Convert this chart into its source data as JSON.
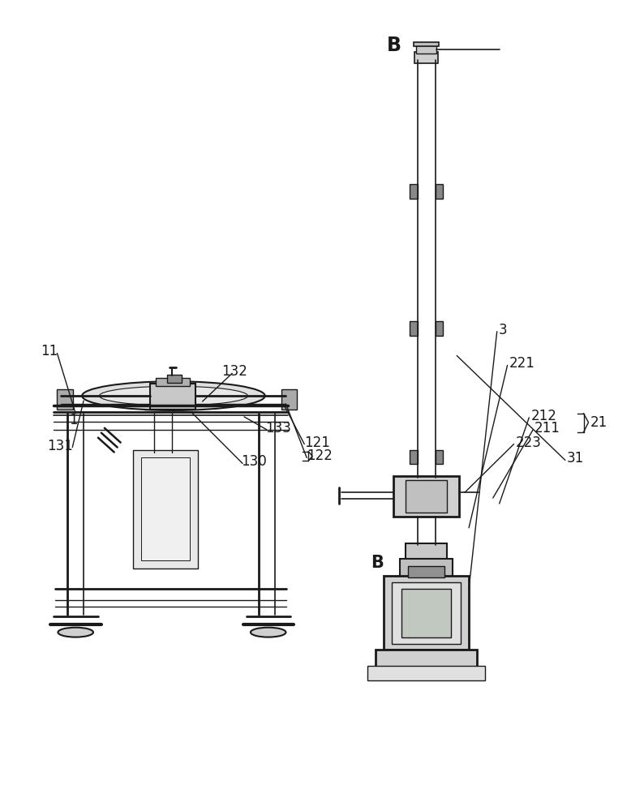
{
  "bg_color": "#ffffff",
  "lc": "#1a1a1a",
  "fig_width": 7.94,
  "fig_height": 10.0,
  "label_fontsize": 12,
  "B_fontsize": 17
}
